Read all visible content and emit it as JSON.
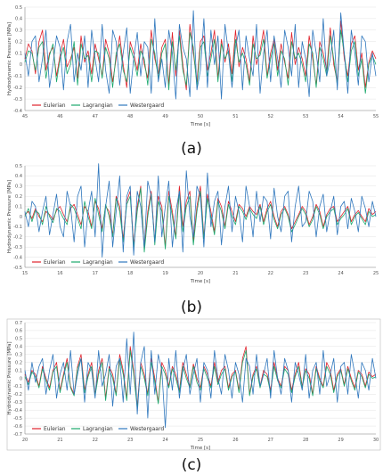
{
  "colors": {
    "eulerian": "#e0212b",
    "lagrangian": "#1aa86c",
    "westergaard": "#2f77bd"
  },
  "legend": [
    "Eulerian",
    "Lagrangian",
    "Westergaard"
  ],
  "chart_data": [
    {
      "type": "line",
      "caption": "(a)",
      "xlabel": "Time [s]",
      "ylabel": "Hydrodynamic Pressure [MPa]",
      "xlim": [
        45,
        55
      ],
      "ylim": [
        -0.4,
        0.5
      ],
      "xticks": [
        45,
        46,
        47,
        48,
        49,
        50,
        51,
        52,
        53,
        54,
        55
      ],
      "yticks": [
        0.5,
        0.4,
        0.3,
        0.2,
        0.1,
        0,
        -0.1,
        -0.2,
        -0.3,
        -0.4
      ],
      "x_start": 45,
      "x_step": 0.1,
      "series": [
        {
          "name": "Eulerian",
          "values": [
            0.05,
            0.18,
            0.12,
            -0.08,
            0.2,
            0.3,
            -0.05,
            0.1,
            0.15,
            -0.1,
            0.08,
            0.22,
            -0.02,
            0.05,
            0.15,
            -0.12,
            0.25,
            0.02,
            0.12,
            -0.08,
            0.18,
            0.05,
            -0.1,
            0.22,
            0.1,
            -0.15,
            0.05,
            0.25,
            0.0,
            -0.2,
            0.2,
            0.1,
            -0.05,
            0.18,
            0.0,
            -0.12,
            0.3,
            0.05,
            -0.08,
            0.15,
            0.22,
            -0.18,
            0.28,
            -0.1,
            0.3,
            0.0,
            -0.22,
            0.35,
            0.1,
            -0.15,
            0.2,
            0.25,
            -0.05,
            0.1,
            0.3,
            -0.12,
            0.22,
            0.02,
            0.18,
            -0.08,
            0.3,
            -0.02,
            0.15,
            0.05,
            -0.15,
            0.25,
            0.0,
            0.12,
            0.3,
            -0.1,
            0.1,
            0.22,
            -0.05,
            0.18,
            0.02,
            -0.12,
            0.28,
            0.0,
            0.15,
            0.05,
            -0.1,
            0.25,
            0.05,
            -0.18,
            0.2,
            0.1,
            -0.05,
            0.32,
            0.0,
            -0.15,
            0.38,
            0.05,
            -0.1,
            0.18,
            0.25,
            -0.05,
            0.1,
            -0.2,
            0.02,
            0.12,
            0.05
          ]
        },
        {
          "name": "Lagrangian",
          "values": [
            0.02,
            0.12,
            0.1,
            -0.05,
            0.15,
            0.2,
            -0.12,
            0.08,
            0.18,
            -0.15,
            0.05,
            0.15,
            -0.08,
            0.0,
            0.2,
            -0.18,
            0.18,
            0.05,
            0.08,
            -0.15,
            0.12,
            0.1,
            -0.12,
            0.15,
            0.05,
            -0.2,
            0.1,
            0.18,
            -0.05,
            -0.15,
            0.15,
            0.05,
            -0.1,
            0.12,
            0.05,
            -0.18,
            0.22,
            0.1,
            -0.12,
            0.1,
            0.18,
            -0.22,
            0.2,
            -0.05,
            0.25,
            -0.05,
            -0.18,
            0.28,
            0.15,
            -0.2,
            0.15,
            0.2,
            -0.1,
            0.05,
            0.22,
            -0.15,
            0.18,
            0.05,
            0.12,
            -0.15,
            0.22,
            0.02,
            0.1,
            0.0,
            -0.18,
            0.18,
            0.05,
            0.08,
            0.22,
            -0.12,
            0.05,
            0.18,
            -0.1,
            0.12,
            0.05,
            -0.18,
            0.2,
            0.05,
            0.1,
            0.0,
            -0.15,
            0.18,
            0.1,
            -0.2,
            0.15,
            0.05,
            -0.1,
            0.25,
            0.05,
            -0.18,
            0.3,
            0.1,
            -0.15,
            0.12,
            0.2,
            -0.1,
            0.05,
            -0.25,
            0.0,
            0.08,
            0.0
          ]
        },
        {
          "name": "Westergaard",
          "values": [
            0.1,
            -0.1,
            0.2,
            0.25,
            -0.15,
            0.05,
            0.3,
            -0.2,
            0.0,
            0.25,
            0.15,
            -0.22,
            0.2,
            0.35,
            -0.15,
            0.1,
            -0.05,
            0.25,
            -0.2,
            0.3,
            0.05,
            -0.15,
            0.35,
            -0.05,
            -0.25,
            0.3,
            0.2,
            -0.18,
            0.1,
            0.32,
            -0.25,
            0.05,
            0.28,
            -0.1,
            0.2,
            0.15,
            -0.25,
            0.4,
            -0.15,
            0.05,
            -0.2,
            0.3,
            0.1,
            -0.3,
            0.35,
            0.15,
            0.05,
            -0.28,
            0.47,
            -0.22,
            -0.05,
            0.4,
            -0.2,
            0.3,
            0.0,
            0.25,
            -0.3,
            0.35,
            0.1,
            -0.2,
            0.15,
            0.3,
            -0.22,
            0.25,
            0.05,
            -0.1,
            0.35,
            -0.25,
            0.1,
            0.3,
            -0.15,
            0.25,
            0.05,
            -0.2,
            0.3,
            0.15,
            -0.1,
            0.35,
            -0.2,
            0.2,
            0.05,
            -0.28,
            0.3,
            0.1,
            -0.15,
            0.4,
            -0.1,
            0.05,
            0.3,
            -0.22,
            0.45,
            0.1,
            -0.25,
            0.3,
            0.1,
            -0.18,
            0.25,
            0.2,
            -0.15,
            0.1,
            -0.1
          ]
        }
      ]
    },
    {
      "type": "line",
      "caption": "(b)",
      "xlabel": "Time [s]",
      "ylabel": "Hydrodynamic Pressure [MPa]",
      "xlim": [
        15,
        25
      ],
      "ylim": [
        -0.5,
        0.5
      ],
      "xticks": [
        15,
        16,
        17,
        18,
        19,
        20,
        21,
        22,
        23,
        24,
        25
      ],
      "yticks": [
        0.5,
        0.4,
        0.3,
        0.2,
        0.1,
        0,
        -0.1,
        -0.2,
        -0.3,
        -0.4,
        -0.5
      ],
      "x_start": 15,
      "x_step": 0.1,
      "series": [
        {
          "name": "Eulerian",
          "values": [
            0.02,
            0.05,
            -0.02,
            0.08,
            0.0,
            -0.05,
            0.05,
            0.02,
            -0.03,
            0.06,
            0.1,
            0.02,
            -0.05,
            0.08,
            0.12,
            0.02,
            -0.08,
            0.1,
            0.05,
            -0.1,
            0.15,
            0.08,
            -0.12,
            0.1,
            0.05,
            -0.18,
            0.2,
            0.1,
            -0.22,
            0.15,
            0.25,
            -0.28,
            0.1,
            0.3,
            -0.32,
            0.05,
            0.25,
            -0.25,
            0.2,
            0.1,
            -0.3,
            0.25,
            0.05,
            -0.2,
            0.3,
            -0.1,
            0.15,
            0.25,
            -0.25,
            0.1,
            0.3,
            -0.2,
            0.22,
            0.05,
            -0.15,
            0.18,
            0.1,
            -0.1,
            0.15,
            0.05,
            -0.05,
            0.12,
            0.08,
            0.0,
            0.1,
            0.05,
            0.02,
            0.12,
            -0.05,
            0.08,
            0.15,
            0.0,
            -0.1,
            0.05,
            0.1,
            0.02,
            -0.12,
            -0.05,
            0.02,
            0.1,
            0.05,
            -0.08,
            0.0,
            0.12,
            0.05,
            -0.1,
            0.02,
            0.08,
            0.1,
            -0.05,
            0.0,
            0.05,
            0.1,
            -0.05,
            0.02,
            0.06,
            0.0,
            -0.05,
            0.08,
            0.02,
            0.05
          ]
        },
        {
          "name": "Lagrangian",
          "values": [
            0.0,
            0.08,
            -0.05,
            0.06,
            0.03,
            -0.08,
            0.1,
            0.0,
            -0.06,
            0.08,
            0.05,
            -0.02,
            -0.08,
            0.12,
            0.08,
            -0.02,
            -0.12,
            0.15,
            0.0,
            -0.12,
            0.18,
            0.02,
            -0.15,
            0.12,
            0.0,
            -0.2,
            0.18,
            0.05,
            -0.25,
            0.12,
            0.2,
            -0.3,
            0.05,
            0.28,
            -0.35,
            0.0,
            0.22,
            -0.28,
            0.15,
            0.05,
            -0.32,
            0.2,
            0.0,
            -0.22,
            0.25,
            -0.15,
            0.1,
            0.2,
            -0.28,
            0.05,
            0.25,
            -0.22,
            0.18,
            0.0,
            -0.18,
            0.15,
            0.05,
            -0.12,
            0.12,
            0.0,
            -0.08,
            0.1,
            0.05,
            -0.03,
            0.08,
            0.02,
            -0.02,
            0.1,
            -0.08,
            0.05,
            0.12,
            -0.03,
            -0.12,
            0.02,
            0.08,
            0.0,
            -0.15,
            -0.08,
            0.0,
            0.08,
            0.02,
            -0.1,
            -0.03,
            0.1,
            0.02,
            -0.12,
            0.0,
            0.05,
            0.08,
            -0.08,
            -0.02,
            0.02,
            0.08,
            -0.08,
            0.0,
            0.04,
            -0.02,
            -0.08,
            0.05,
            0.0,
            0.02
          ]
        },
        {
          "name": "Westergaard",
          "values": [
            0.05,
            -0.1,
            0.15,
            0.1,
            -0.15,
            0.05,
            0.2,
            -0.18,
            0.02,
            0.22,
            -0.1,
            -0.2,
            0.25,
            0.1,
            -0.25,
            0.2,
            0.3,
            -0.3,
            0.05,
            0.25,
            -0.2,
            0.52,
            -0.4,
            0.1,
            0.35,
            -0.3,
            0.05,
            0.4,
            -0.35,
            0.2,
            0.3,
            -0.38,
            0.25,
            0.1,
            -0.3,
            0.35,
            0.2,
            -0.25,
            0.4,
            -0.2,
            0.1,
            0.35,
            -0.3,
            0.05,
            0.25,
            -0.35,
            0.45,
            0.0,
            -0.2,
            0.3,
            0.2,
            -0.3,
            0.43,
            -0.1,
            0.15,
            0.25,
            -0.28,
            0.1,
            0.3,
            -0.15,
            0.2,
            0.05,
            -0.25,
            0.3,
            0.1,
            -0.2,
            0.25,
            -0.05,
            0.2,
            0.15,
            -0.22,
            0.28,
            0.0,
            -0.15,
            0.2,
            0.25,
            -0.25,
            0.1,
            0.3,
            -0.1,
            -0.05,
            0.25,
            0.15,
            -0.2,
            0.1,
            0.22,
            -0.15,
            0.05,
            0.2,
            -0.18,
            0.1,
            0.15,
            -0.12,
            0.18,
            0.05,
            -0.15,
            0.2,
            0.08,
            -0.1,
            0.15,
            0.0
          ]
        }
      ]
    },
    {
      "type": "line",
      "caption": "(c)",
      "xlabel": "Time [s]",
      "ylabel": "Hydrodynamic Pressure [MPa]",
      "xlim": [
        20,
        30
      ],
      "ylim": [
        -0.7,
        0.7
      ],
      "xticks": [
        20,
        21,
        22,
        23,
        24,
        25,
        26,
        27,
        28,
        29,
        30
      ],
      "yticks": [
        0.7,
        0.6,
        0.5,
        0.4,
        0.3,
        0.2,
        0.1,
        0,
        -0.1,
        -0.2,
        -0.3,
        -0.4,
        -0.5,
        -0.6,
        -0.7
      ],
      "x_start": 20,
      "x_step": 0.1,
      "series": [
        {
          "name": "Eulerian",
          "values": [
            0.05,
            -0.05,
            0.1,
            0.05,
            -0.1,
            0.15,
            0.0,
            -0.12,
            0.1,
            0.2,
            -0.15,
            0.05,
            0.25,
            -0.1,
            -0.2,
            0.15,
            0.3,
            -0.15,
            0.05,
            0.2,
            -0.2,
            0.1,
            0.25,
            -0.25,
            0.15,
            0.05,
            -0.2,
            0.3,
            0.1,
            -0.25,
            0.4,
            0.1,
            -0.35,
            0.2,
            0.05,
            -0.2,
            0.25,
            0.0,
            -0.3,
            0.2,
            0.1,
            -0.1,
            0.15,
            0.05,
            -0.15,
            0.2,
            0.05,
            -0.1,
            0.18,
            0.0,
            -0.12,
            0.15,
            0.05,
            -0.1,
            0.2,
            -0.05,
            0.1,
            0.15,
            -0.12,
            0.05,
            0.1,
            -0.15,
            0.25,
            0.4,
            -0.2,
            0.05,
            0.15,
            -0.1,
            0.1,
            0.05,
            -0.15,
            0.2,
            0.0,
            -0.1,
            0.15,
            0.1,
            -0.15,
            0.05,
            0.2,
            -0.1,
            0.12,
            0.05,
            -0.2,
            0.15,
            0.0,
            -0.1,
            0.2,
            0.1,
            -0.15,
            0.05,
            0.12,
            -0.08,
            0.15,
            0.0,
            -0.12,
            0.1,
            0.05,
            -0.1,
            0.08,
            0.02,
            0.05
          ]
        },
        {
          "name": "Lagrangian",
          "values": [
            0.02,
            -0.08,
            0.08,
            0.02,
            -0.12,
            0.12,
            -0.03,
            -0.15,
            0.08,
            0.15,
            -0.18,
            0.02,
            0.2,
            -0.12,
            -0.22,
            0.12,
            0.25,
            -0.18,
            0.02,
            0.15,
            -0.22,
            0.05,
            0.2,
            -0.28,
            0.12,
            0.0,
            -0.22,
            0.25,
            0.05,
            -0.28,
            0.35,
            0.05,
            -0.38,
            0.15,
            0.0,
            -0.22,
            0.2,
            -0.05,
            -0.32,
            0.15,
            0.05,
            -0.12,
            0.12,
            0.0,
            -0.18,
            0.15,
            0.0,
            -0.12,
            0.15,
            -0.05,
            -0.15,
            0.12,
            0.0,
            -0.12,
            0.15,
            -0.08,
            0.05,
            0.12,
            -0.15,
            0.02,
            0.08,
            -0.18,
            0.2,
            0.35,
            -0.22,
            0.02,
            0.12,
            -0.12,
            0.05,
            0.02,
            -0.18,
            0.15,
            -0.03,
            -0.12,
            0.12,
            0.05,
            -0.18,
            0.02,
            0.15,
            -0.12,
            0.1,
            0.0,
            -0.22,
            0.12,
            -0.03,
            -0.12,
            0.15,
            0.05,
            -0.18,
            0.02,
            0.1,
            -0.1,
            0.12,
            -0.03,
            -0.15,
            0.08,
            0.02,
            -0.12,
            0.05,
            0.0,
            0.02
          ]
        },
        {
          "name": "Westergaard",
          "values": [
            0.1,
            -0.15,
            0.2,
            -0.05,
            0.15,
            0.25,
            -0.2,
            0.1,
            0.3,
            -0.25,
            0.05,
            0.2,
            -0.15,
            0.35,
            -0.2,
            0.05,
            0.25,
            -0.3,
            0.2,
            0.1,
            -0.25,
            0.35,
            -0.1,
            0.05,
            0.3,
            -0.35,
            0.15,
            0.25,
            -0.3,
            0.5,
            -0.2,
            0.58,
            -0.45,
            0.2,
            0.4,
            -0.5,
            0.35,
            -0.2,
            0.3,
            0.1,
            -0.62,
            0.25,
            -0.15,
            0.35,
            -0.25,
            0.1,
            0.3,
            -0.2,
            0.05,
            0.25,
            -0.3,
            0.2,
            0.1,
            -0.25,
            0.35,
            0.0,
            -0.2,
            0.3,
            0.1,
            -0.25,
            0.2,
            0.05,
            -0.3,
            0.25,
            0.15,
            -0.2,
            0.3,
            -0.1,
            0.05,
            0.25,
            -0.25,
            0.35,
            0.0,
            -0.2,
            0.25,
            0.1,
            -0.3,
            0.2,
            0.05,
            -0.15,
            0.3,
            -0.25,
            0.1,
            0.2,
            -0.2,
            0.35,
            -0.1,
            0.05,
            0.25,
            -0.3,
            0.15,
            0.2,
            -0.2,
            0.3,
            0.05,
            -0.25,
            0.2,
            0.1,
            -0.15,
            0.25,
            0.0
          ]
        }
      ]
    }
  ]
}
